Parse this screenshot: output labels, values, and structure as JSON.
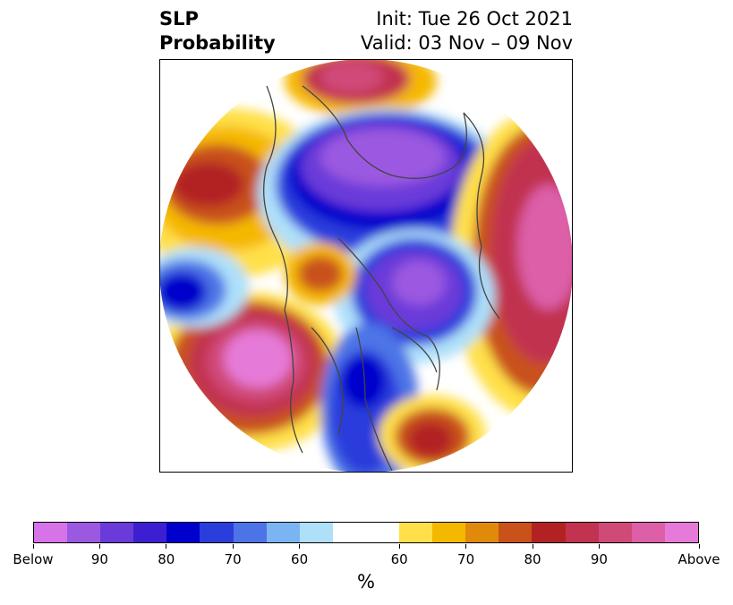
{
  "title": {
    "left_line1": "SLP",
    "left_line2": "Probability",
    "right_line1": "Init: Tue 26 Oct 2021",
    "right_line2": "Valid: 03 Nov – 09 Nov"
  },
  "colorbar": {
    "unit": "%",
    "colors": [
      "#d673e8",
      "#9b58e0",
      "#6a3bd9",
      "#3b1fd1",
      "#0000cc",
      "#2a3edc",
      "#4d74e6",
      "#7bb4f2",
      "#aee0fa",
      "#ffffff",
      "#ffffff",
      "#ffe04a",
      "#f5b800",
      "#e08a0c",
      "#c9511a",
      "#b22222",
      "#c1334f",
      "#d04a78",
      "#dc5fa8",
      "#e67ad8"
    ],
    "tick_labels": [
      "Below",
      "90",
      "80",
      "70",
      "60",
      "60",
      "70",
      "80",
      "90",
      "Above"
    ]
  }
}
